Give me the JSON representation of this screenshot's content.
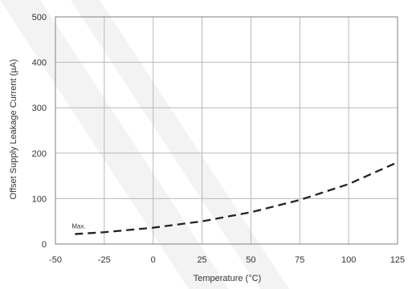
{
  "chart_data": {
    "type": "line",
    "title": "",
    "xlabel": "Temperature (°C)",
    "ylabel": "Offset Supply Leakage Current (µA)",
    "xlim": [
      -50,
      125
    ],
    "ylim": [
      0,
      500
    ],
    "x_ticks": [
      -50,
      -25,
      0,
      25,
      50,
      75,
      100,
      125
    ],
    "y_ticks": [
      0,
      100,
      200,
      300,
      400,
      500
    ],
    "grid": true,
    "legend": "none",
    "series": [
      {
        "label": "Max.",
        "style": "dashed",
        "color": "#222222",
        "x": [
          -40,
          -25,
          0,
          25,
          50,
          75,
          100,
          125
        ],
        "y": [
          22,
          26,
          36,
          50,
          70,
          97,
          132,
          180
        ]
      }
    ],
    "colors": {
      "grid": "#b8b8b8",
      "frame": "#7f7f7f",
      "text": "#333333",
      "watermark": "#f3f3f3"
    }
  }
}
